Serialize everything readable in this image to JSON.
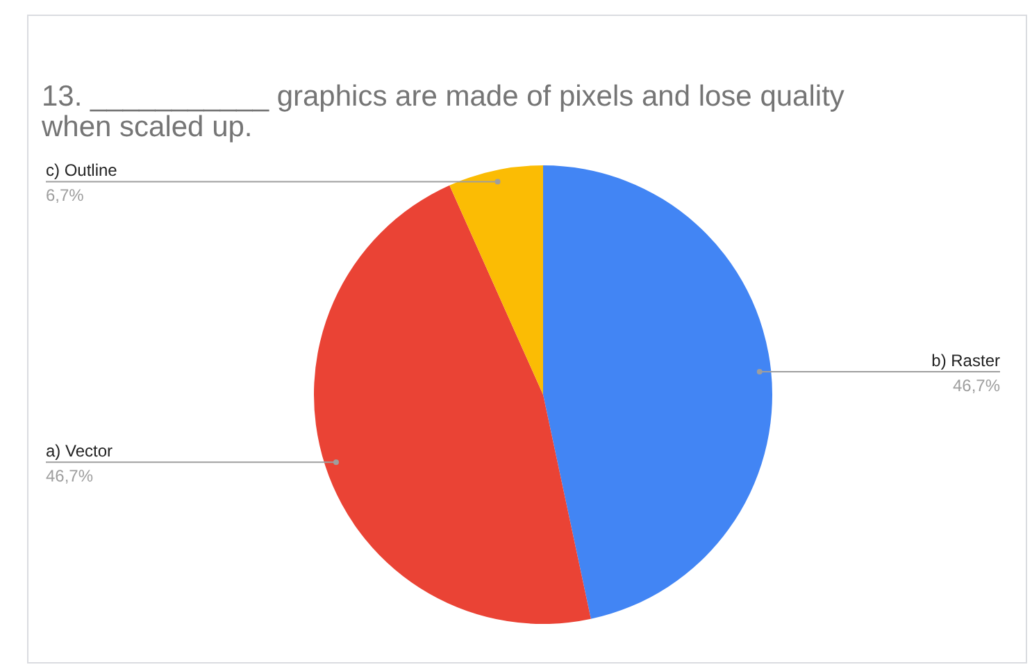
{
  "chart_data": {
    "type": "pie",
    "title": "13. ___________ graphics are made of pixels and lose quality when scaled up.",
    "categories": [
      "b) Raster",
      "a) Vector",
      "c) Outline"
    ],
    "values": [
      46.7,
      46.7,
      6.7
    ],
    "value_labels": [
      "46,7%",
      "46,7%",
      "6,7%"
    ],
    "colors": [
      "#4285f4",
      "#ea4335",
      "#fbbc04"
    ]
  }
}
